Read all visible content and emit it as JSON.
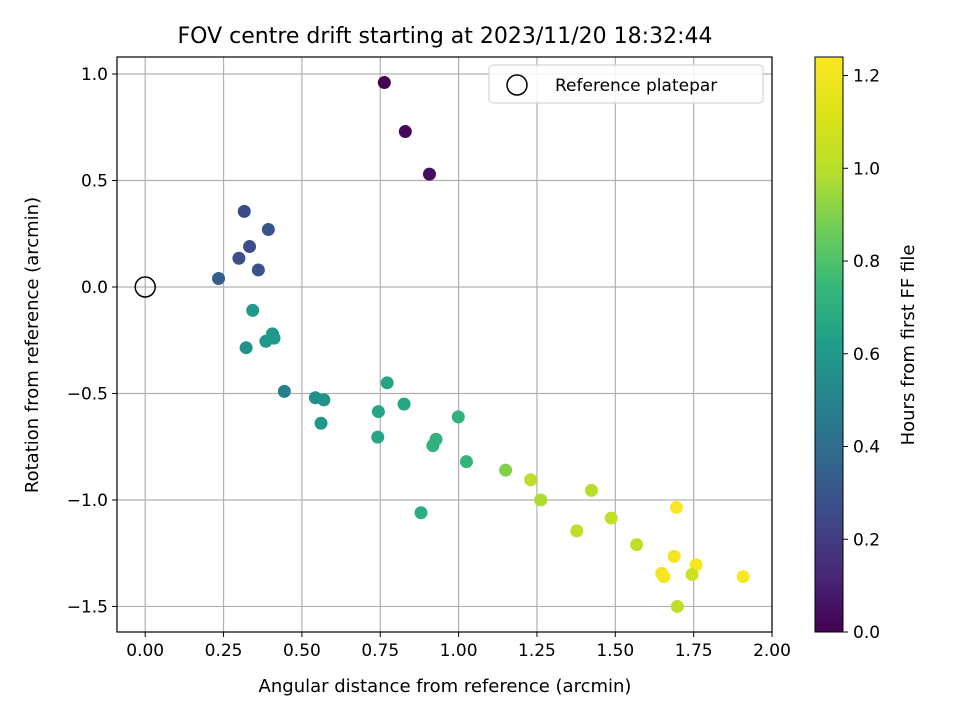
{
  "chart_data": {
    "type": "scatter",
    "title": "FOV centre drift starting at 2023/11/20 18:32:44",
    "xlabel": "Angular distance from reference (arcmin)",
    "ylabel": "Rotation from reference (arcmin)",
    "xlim": [
      -0.09,
      2.0
    ],
    "ylim": [
      -1.62,
      1.08
    ],
    "xticks": [
      0.0,
      0.25,
      0.5,
      0.75,
      1.0,
      1.25,
      1.5,
      1.75,
      2.0
    ],
    "xtick_labels": [
      "0.00",
      "0.25",
      "0.50",
      "0.75",
      "1.00",
      "1.25",
      "1.50",
      "1.75",
      "2.00"
    ],
    "yticks": [
      1.0,
      0.5,
      0.0,
      -0.5,
      -1.0,
      -1.5
    ],
    "ytick_labels": [
      "1.0",
      "0.5",
      "0.0",
      "−0.5",
      "−1.0",
      "−1.5"
    ],
    "grid": true,
    "legend": {
      "placement": "upper-right",
      "entries": [
        "Reference platepar"
      ]
    },
    "reference_point": {
      "x": 0.0,
      "y": 0.0,
      "marker": "open-circle"
    },
    "colorbar": {
      "label": "Hours from first FF file",
      "colormap": "viridis",
      "range": [
        0.0,
        1.24
      ],
      "ticks": [
        0.0,
        0.2,
        0.4,
        0.6,
        0.8,
        1.0,
        1.2
      ],
      "tick_labels": [
        "0.0",
        "0.2",
        "0.4",
        "0.6",
        "0.8",
        "1.0",
        "1.2"
      ]
    },
    "points": [
      {
        "x": 0.763,
        "y": 0.96,
        "c": 0.0
      },
      {
        "x": 0.83,
        "y": 0.73,
        "c": 0.02
      },
      {
        "x": 0.907,
        "y": 0.53,
        "c": 0.04
      },
      {
        "x": 0.316,
        "y": 0.355,
        "c": 0.25
      },
      {
        "x": 0.393,
        "y": 0.27,
        "c": 0.3
      },
      {
        "x": 0.333,
        "y": 0.19,
        "c": 0.27
      },
      {
        "x": 0.299,
        "y": 0.135,
        "c": 0.27
      },
      {
        "x": 0.361,
        "y": 0.08,
        "c": 0.29
      },
      {
        "x": 0.234,
        "y": 0.04,
        "c": 0.33
      },
      {
        "x": 0.343,
        "y": -0.11,
        "c": 0.6
      },
      {
        "x": 0.406,
        "y": -0.22,
        "c": 0.6
      },
      {
        "x": 0.411,
        "y": -0.24,
        "c": 0.6
      },
      {
        "x": 0.385,
        "y": -0.255,
        "c": 0.6
      },
      {
        "x": 0.322,
        "y": -0.285,
        "c": 0.57
      },
      {
        "x": 0.444,
        "y": -0.49,
        "c": 0.48
      },
      {
        "x": 0.772,
        "y": -0.45,
        "c": 0.65
      },
      {
        "x": 0.543,
        "y": -0.52,
        "c": 0.55
      },
      {
        "x": 0.57,
        "y": -0.53,
        "c": 0.57
      },
      {
        "x": 0.826,
        "y": -0.55,
        "c": 0.66
      },
      {
        "x": 0.744,
        "y": -0.585,
        "c": 0.66
      },
      {
        "x": 0.561,
        "y": -0.64,
        "c": 0.6
      },
      {
        "x": 0.999,
        "y": -0.61,
        "c": 0.72
      },
      {
        "x": 0.742,
        "y": -0.705,
        "c": 0.66
      },
      {
        "x": 0.928,
        "y": -0.715,
        "c": 0.72
      },
      {
        "x": 0.918,
        "y": -0.745,
        "c": 0.72
      },
      {
        "x": 1.025,
        "y": -0.82,
        "c": 0.73
      },
      {
        "x": 1.15,
        "y": -0.86,
        "c": 0.9
      },
      {
        "x": 1.23,
        "y": -0.905,
        "c": 1.02
      },
      {
        "x": 1.424,
        "y": -0.955,
        "c": 1.0
      },
      {
        "x": 1.262,
        "y": -1.0,
        "c": 0.98
      },
      {
        "x": 0.88,
        "y": -1.06,
        "c": 0.7
      },
      {
        "x": 1.695,
        "y": -1.035,
        "c": 1.23
      },
      {
        "x": 1.487,
        "y": -1.085,
        "c": 1.04
      },
      {
        "x": 1.377,
        "y": -1.145,
        "c": 1.02
      },
      {
        "x": 1.568,
        "y": -1.21,
        "c": 1.02
      },
      {
        "x": 1.688,
        "y": -1.265,
        "c": 1.2
      },
      {
        "x": 1.758,
        "y": -1.305,
        "c": 1.22
      },
      {
        "x": 1.648,
        "y": -1.345,
        "c": 1.19
      },
      {
        "x": 1.745,
        "y": -1.35,
        "c": 1.06
      },
      {
        "x": 1.655,
        "y": -1.36,
        "c": 1.21
      },
      {
        "x": 1.908,
        "y": -1.36,
        "c": 1.23
      },
      {
        "x": 1.698,
        "y": -1.5,
        "c": 1.02
      }
    ]
  }
}
